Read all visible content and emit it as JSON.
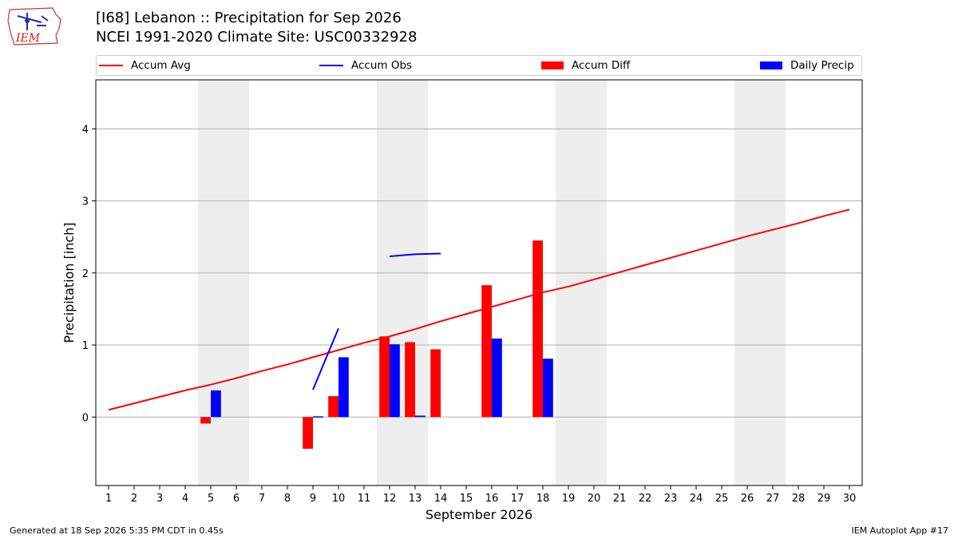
{
  "header": {
    "title_line1": "[I68] Lebanon :: Precipitation for Sep 2026",
    "title_line2": "NCEI 1991-2020 Climate Site: USC00332928",
    "logo_text": "IEM"
  },
  "footer": {
    "generated": "Generated at 18 Sep 2026 5:35 PM CDT in 0.45s",
    "app": "IEM Autoplot App #17"
  },
  "colors": {
    "avg": "#ff0000",
    "obs": "#0000ff",
    "diff": "#ff0000",
    "daily": "#0000ff",
    "weekend": "#eeeeee",
    "grid": "#b0b0b0"
  },
  "chart_data": {
    "type": "bar",
    "title": "[I68] Lebanon :: Precipitation for Sep 2026",
    "subtitle": "NCEI 1991-2020 Climate Site: USC00332928",
    "xlabel": "September 2026",
    "ylabel": "Precipitation [inch]",
    "xlim": [
      0.5,
      30.5
    ],
    "ylim": [
      -0.95,
      4.68
    ],
    "y_ticks": [
      0,
      1,
      2,
      3,
      4
    ],
    "x_ticks": [
      1,
      2,
      3,
      4,
      5,
      6,
      7,
      8,
      9,
      10,
      11,
      12,
      13,
      14,
      15,
      16,
      17,
      18,
      19,
      20,
      21,
      22,
      23,
      24,
      25,
      26,
      27,
      28,
      29,
      30
    ],
    "grid": "horizontal",
    "legend_position": "top",
    "legend": [
      "Accum Avg",
      "Accum Obs",
      "Accum Diff",
      "Daily Precip"
    ],
    "weekend_days": [
      5,
      6,
      12,
      13,
      19,
      20,
      26,
      27
    ],
    "series": [
      {
        "name": "Accum Avg",
        "kind": "line",
        "x": [
          1,
          2,
          3,
          4,
          5,
          6,
          7,
          8,
          9,
          10,
          11,
          12,
          13,
          14,
          15,
          16,
          17,
          18,
          19,
          20,
          21,
          22,
          23,
          24,
          25,
          26,
          27,
          28,
          29,
          30
        ],
        "values": [
          0.1,
          0.19,
          0.28,
          0.37,
          0.45,
          0.54,
          0.64,
          0.73,
          0.83,
          0.93,
          1.03,
          1.12,
          1.22,
          1.33,
          1.43,
          1.53,
          1.63,
          1.73,
          1.81,
          1.91,
          2.01,
          2.11,
          2.21,
          2.31,
          2.41,
          2.51,
          2.6,
          2.69,
          2.79,
          2.88
        ]
      },
      {
        "name": "Accum Obs",
        "kind": "line",
        "segments": [
          {
            "x": [
              9,
              10
            ],
            "values": [
              0.38,
              1.23
            ]
          },
          {
            "x": [
              12,
              13,
              14
            ],
            "values": [
              2.23,
              2.26,
              2.27
            ]
          }
        ]
      },
      {
        "name": "Accum Diff",
        "kind": "bar",
        "x": [
          5,
          9,
          10,
          12,
          13,
          14,
          16,
          18
        ],
        "values": [
          -0.09,
          -0.44,
          0.29,
          1.12,
          1.04,
          0.94,
          1.83,
          2.45
        ]
      },
      {
        "name": "Daily Precip",
        "kind": "bar",
        "x": [
          5,
          9,
          10,
          12,
          13,
          16,
          18
        ],
        "values": [
          0.37,
          0.01,
          0.83,
          1.01,
          0.02,
          1.09,
          0.81
        ]
      }
    ]
  }
}
